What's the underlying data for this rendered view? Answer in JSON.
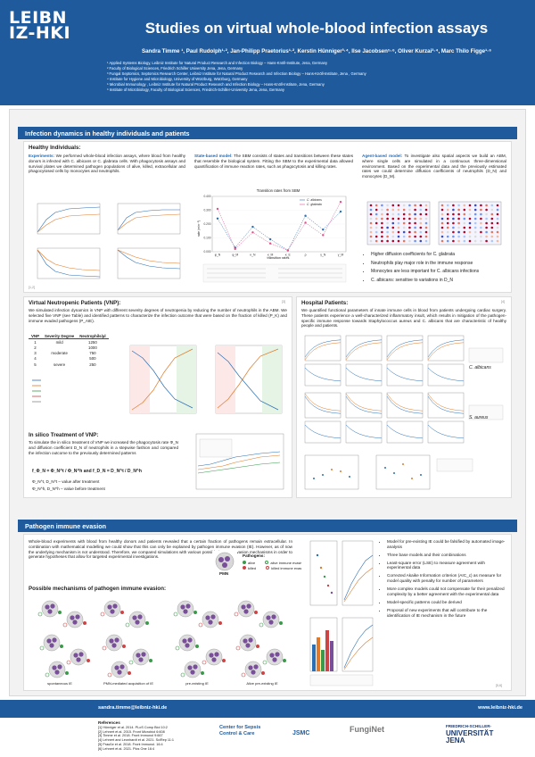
{
  "header": {
    "logo_line1": "LEIBN",
    "logo_line2": "IZ-HKI",
    "title": "Studies on virtual whole-blood infection assays",
    "authors": "Sandra Timme ¹, Paul Rudolph¹·², Jan-Philipp Praetorius¹·², Kerstin Hünniger³·⁴, Ilse Jacobsen⁵·⁶, Oliver Kurzai³·⁴, Marc Thilo Figge¹·⁶",
    "affiliations": [
      "¹ Applied Systems Biology, Leibniz Institute for Natural Product Research and Infection Biology – Hans-Knöll-Institute, Jena, Germany",
      "² Faculty of Biological Sciences, Friedrich Schiller University Jena, Jena, Germany",
      "³ Fungal Septomics, Septomics Research Center, Leibniz Institute for Natural Product Research and Infection Biology – Hans-Knöll-Institute, Jena , Germany",
      "⁴ Institute for Hygiene and Microbiology, University of Würzburg, Würzburg, Germany",
      "⁵ Microbial Immunology , Leibniz Institute for Natural Product Research and Infection Biology – Hans-Knöll-Institute, Jena, Germany",
      "⁶ Institute of Microbiology, Faculty of Biological Sciences, Friedrich-Schiller-University Jena, Jena, Germany"
    ]
  },
  "sec1": {
    "title": "Infection dynamics in healthy individuals and patients",
    "healthy_h": "Healthy Individuals:",
    "exp_label": "Experiments:",
    "exp_text": " We performed whole-blood infection assays, where blood from healthy donors is infected with C. albicans or C. glabrata cells. With phagocytosis assays and survival plates we determined pathogen populations of alive, killed, extracellular and phagocytosed cells by monocytes and neutrophils.",
    "exp_cite": "[1,2]",
    "sbm_label": "State-based model:",
    "sbm_text": " The SBM consists of states and transitions between these states that resemble the biological system. Fitting the SBM to the experimental data allowed quantification of immune reaction rates, such as phagocytosis and killing rates.",
    "abm_label": "Agent-based model:",
    "abm_text": " To investigate also spatial aspects we build an ABM, where single cells are simulated in a continuous three-dimensional environment. Based on the experimental data and the previously estimated rates we could determine diffusion coefficients of neutrophils (D_N) and monocytes (D_M).",
    "abm_bullets": [
      "Higher diffusion coefficients for C. glabrata",
      "Neutrophils play major role in the immune response",
      "Monocytes are less important for C. albicans infections",
      "C. albicans: sensitive to variations in D_N"
    ],
    "vnp_h": "Virtual Neutropenic Patients (VNP):",
    "vnp_cite": "[3]",
    "vnp_text": "We simulated infection dynamics in VNP with different severity degrees of neutropenia by reducing the number of neutrophils in the ABM. We selected five VNP (see Table) and identified patterns to characterize the infection outcome that were based on the fraction of killed (P_K) and immune evaded pathogens (P_AIE).",
    "vnp_table": {
      "headers": [
        "VNP",
        "Severity Degree",
        "Neutrophils/µl"
      ],
      "rows": [
        [
          "1",
          "mild",
          "1250"
        ],
        [
          "2",
          "",
          "1000"
        ],
        [
          "3",
          "moderate",
          "750"
        ],
        [
          "4",
          "",
          "500"
        ],
        [
          "5",
          "severe",
          "250"
        ]
      ]
    },
    "insilico_h": "In silico Treatment of VNP:",
    "insilico_text": "To simulate the in silico treatment of VNP we increased the phagocytosis rate Φ_N and diffusion coefficient D_N of neutrophils in a stepwise fashion and compared the infection outcome to the previously determined patterns",
    "insilico_formula": "f_Φ_N = Φ_N^t / Φ_N^h   and   f_D_N = D_N^t / D_N^h",
    "insilico_b1": "Φ_N^t, D_N^t – value after treatment",
    "insilico_b2": "Φ_N^h, D_N^h – value before treatment",
    "hosp_h": "Hospital Patients:",
    "hosp_cite": "[4]",
    "hosp_text": "We quantified functional parameters of innate immune cells in blood from patients undergoing cardiac surgery. These patients experience a well-characterized inflammatory insult, which results in mitigation of the pathogen-specific immune response towards Staphylococcus aureus and C. albicans that are characteristic of healthy people and patients.",
    "hosp_tag1": "C. albicans",
    "hosp_tag2": "S. aureus"
  },
  "sec2": {
    "title": "Pathogen immune evasion",
    "text": "Whole-blood experiments with blood from healthy donors and patients revealed that a certain fraction of pathogens remain extracellular. In combination with mathematical modelling we could show that this can only be explained by pathogen immune evasion (IE). However, as of now the underlying mechanism is not understood. Therefore, we compared simulations with various possible immune evasion mechanisms in order to generate hypotheses that allow for targeted experimental investigations.",
    "mech_h": "Possible mechanisms of pathogen immune evasion:",
    "legend_title": "Pathogens:",
    "legend_items": [
      "alive",
      "alive immune evasive",
      "killed",
      "killed immune evasive"
    ],
    "pmn_label": "PMN",
    "captions": [
      "spontaneous IE",
      "PMN-mediated acquisition of IE",
      "pre-existing IE",
      "Alive pre-existing IE"
    ],
    "bullets": [
      "Model for pre-existing IE could be falsified by automated image-analysis",
      "Three base models and their combinations",
      "Least-square error (LSE) to measure agreement with experimental data",
      "Corrected Akaike Information criterion (AIC_c) as measure for model quality with penalty for number of parameters",
      "More complex models could not compensate for their penalized complexity by a better agreement with the experimental data",
      "Model-specific patterns could be derived",
      "Proposal of new experiments that will contribute to the identification of IE mechanism in the future"
    ],
    "cite": "[5,6]"
  },
  "footer": {
    "email": "sandra.timme@leibniz-hki.de",
    "website": "www.leibniz-hki.de"
  },
  "references": {
    "title": "References",
    "items": [
      "[1] Hünniger et al. 2014. PLoS Comp Biol 10:2",
      "[2] Lehnert et al. 2015. Front Microbiol 6:608",
      "[3] Timme et al. 2018. Front Immunol 9:667",
      "[4] Lehnert and Leonhardt et al. 2021. SciRep 11:1",
      "[5] Prauße et al. 2018. Front Immunol. 16:4",
      "[6] Lehnert et al. 2021. Plos One 16:4"
    ]
  },
  "sponsors": {
    "csc_line1": "Center for Sepsis",
    "csc_line2": "Control & Care",
    "jsmc": "JSMC",
    "fungi": "FungiNet",
    "uni_line1": "FRIEDRICH-SCHILLER-",
    "uni_line2": "UNIVERSITÄT",
    "uni_line3": "JENA"
  },
  "chart_data": [
    {
      "type": "line",
      "title": "Transition rates from SBM",
      "xlabel": "transition rates",
      "ylabel": "rate (min⁻¹)",
      "categories": [
        "φ_N",
        "φ_M",
        "κ_N",
        "κ_M",
        "κ_E",
        "ρ",
        "γ_N",
        "γ_M"
      ],
      "ylim": [
        0,
        0.4
      ],
      "series": [
        {
          "name": "C. albicans",
          "values": [
            0.24,
            0.03,
            0.18,
            0.09,
            0.01,
            0.26,
            0.16,
            0.29
          ]
        },
        {
          "name": "C. glabrata",
          "values": [
            0.31,
            0.02,
            0.14,
            0.06,
            0.01,
            0.21,
            0.12,
            0.36
          ]
        }
      ]
    }
  ]
}
